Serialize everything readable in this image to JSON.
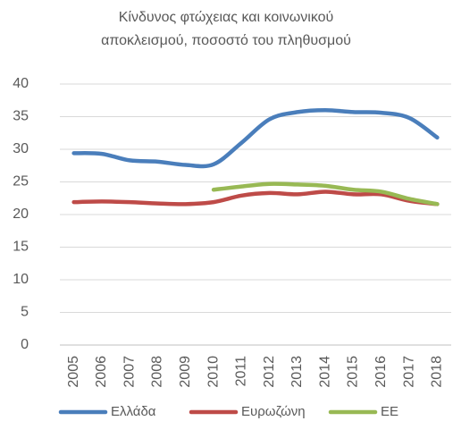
{
  "chart_data": {
    "type": "line",
    "title": [
      "Κίνδυνος φτώχειας και κοινωνικού",
      "αποκλεισμού, ποσοστό του πληθυσμού"
    ],
    "categories": [
      "2005",
      "2006",
      "2007",
      "2008",
      "2009",
      "2010",
      "2011",
      "2012",
      "2013",
      "2014",
      "2015",
      "2016",
      "2017",
      "2018"
    ],
    "series": [
      {
        "name": "Ελλάδα",
        "color": "#4a7ebb",
        "values": [
          29.4,
          29.3,
          28.3,
          28.1,
          27.6,
          27.7,
          31.0,
          34.6,
          35.7,
          36.0,
          35.7,
          35.6,
          34.8,
          31.8
        ]
      },
      {
        "name": "Ευρωζώνη",
        "color": "#be4b48",
        "values": [
          21.9,
          22.0,
          21.9,
          21.7,
          21.6,
          21.9,
          22.9,
          23.3,
          23.1,
          23.5,
          23.1,
          23.1,
          22.1,
          21.6
        ]
      },
      {
        "name": "ΕΕ",
        "color": "#98b954",
        "values": [
          null,
          null,
          null,
          null,
          null,
          23.8,
          24.3,
          24.7,
          24.6,
          24.4,
          23.8,
          23.5,
          22.4,
          21.6
        ]
      }
    ],
    "ylim": [
      0,
      40
    ],
    "yticks": [
      0,
      5,
      10,
      15,
      20,
      25,
      30,
      35,
      40
    ],
    "grid": true,
    "legend": "bottom"
  }
}
